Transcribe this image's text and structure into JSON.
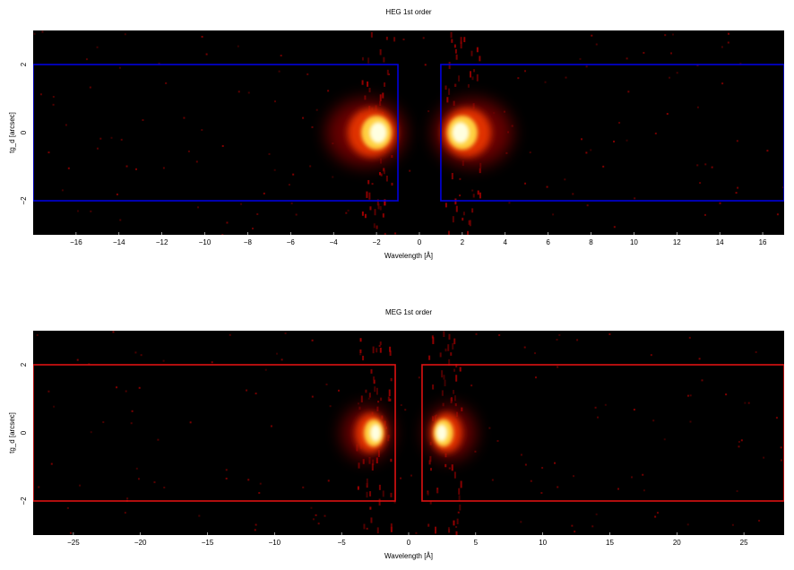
{
  "chart_data": [
    {
      "type": "heatmap",
      "title": "HEG 1st order",
      "xlabel": "Wavelength [Å]",
      "ylabel": "tg_d [arcsec]",
      "xlim": [
        -18,
        17
      ],
      "ylim": [
        -3,
        3
      ],
      "xticks": [
        -16,
        -14,
        -12,
        -10,
        -8,
        -6,
        -4,
        -2,
        0,
        2,
        4,
        6,
        8,
        10,
        12,
        14,
        16
      ],
      "yticks": [
        -2,
        0,
        2
      ],
      "colormap": "hot",
      "region_color": "#0000dd",
      "regions": [
        {
          "x": [
            -18,
            -1.0
          ],
          "y": [
            -2,
            2
          ]
        },
        {
          "x": [
            1.0,
            17
          ],
          "y": [
            -2,
            2
          ]
        }
      ],
      "bright_peaks": [
        {
          "x": -2.0,
          "y": 0.0
        },
        {
          "x": 2.0,
          "y": 0.0
        }
      ]
    },
    {
      "type": "heatmap",
      "title": "MEG 1st order",
      "xlabel": "Wavelength [Å]",
      "ylabel": "tg_d [arcsec]",
      "xlim": [
        -28,
        28
      ],
      "ylim": [
        -3,
        3
      ],
      "xticks": [
        -25,
        -20,
        -15,
        -10,
        -5,
        0,
        5,
        10,
        15,
        20,
        25
      ],
      "yticks": [
        -2,
        0,
        2
      ],
      "colormap": "hot",
      "region_color": "#dd1111",
      "regions": [
        {
          "x": [
            -28,
            -1.0
          ],
          "y": [
            -2,
            2
          ]
        },
        {
          "x": [
            1.0,
            28
          ],
          "y": [
            -2,
            2
          ]
        }
      ],
      "bright_peaks": [
        {
          "x": -2.6,
          "y": 0.0
        },
        {
          "x": 2.6,
          "y": 0.0
        }
      ]
    }
  ]
}
